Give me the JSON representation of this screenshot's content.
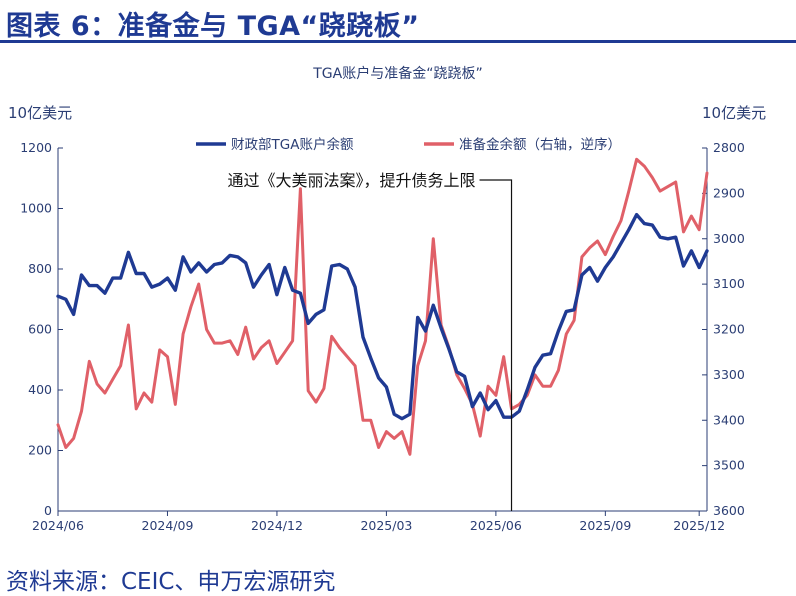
{
  "figure": {
    "title": "图表 6：准备金与 TGA“跷跷板”",
    "source": "资料来源：CEIC、申万宏源研究",
    "title_color": "#1f3a93"
  },
  "chart_data": {
    "type": "line",
    "title": "TGA账户与准备金“跷跷板”",
    "ylabel_left": "10亿美元",
    "ylabel_right": "10亿美元",
    "ylim_left": [
      0,
      1200
    ],
    "ylim_right": [
      2800,
      3600
    ],
    "right_axis_inverted": true,
    "yticks_left": [
      "1200",
      "1000",
      "800",
      "600",
      "400",
      "200",
      "0"
    ],
    "yticks_right": [
      "2800",
      "2900",
      "3000",
      "3100",
      "3200",
      "3300",
      "3400",
      "3500",
      "3600"
    ],
    "xticks": [
      "2024/06",
      "2024/09",
      "2024/12",
      "2025/03",
      "2025/06",
      "2025/09",
      "2025/12"
    ],
    "grid": false,
    "legend_placement": "top",
    "series": [
      {
        "name": "财政部TGA账户余额",
        "axis": "left",
        "color": "#1f3a93",
        "values": [
          {
            "x": 0.0,
            "y": 710
          },
          {
            "x": 1.0,
            "y": 700
          },
          {
            "x": 2.0,
            "y": 650
          },
          {
            "x": 3.0,
            "y": 780
          },
          {
            "x": 4.0,
            "y": 745
          },
          {
            "x": 5.0,
            "y": 745
          },
          {
            "x": 6.0,
            "y": 720
          },
          {
            "x": 7.0,
            "y": 770
          },
          {
            "x": 8.0,
            "y": 770
          },
          {
            "x": 9.0,
            "y": 855
          },
          {
            "x": 10.0,
            "y": 785
          },
          {
            "x": 11.0,
            "y": 785
          },
          {
            "x": 12.0,
            "y": 740
          },
          {
            "x": 13.0,
            "y": 750
          },
          {
            "x": 14.0,
            "y": 770
          },
          {
            "x": 15.0,
            "y": 730
          },
          {
            "x": 16.0,
            "y": 840
          },
          {
            "x": 17.0,
            "y": 790
          },
          {
            "x": 18.0,
            "y": 820
          },
          {
            "x": 19.0,
            "y": 790
          },
          {
            "x": 20.0,
            "y": 815
          },
          {
            "x": 21.0,
            "y": 820
          },
          {
            "x": 22.0,
            "y": 845
          },
          {
            "x": 23.0,
            "y": 840
          },
          {
            "x": 24.0,
            "y": 820
          },
          {
            "x": 25.0,
            "y": 740
          },
          {
            "x": 26.0,
            "y": 780
          },
          {
            "x": 27.0,
            "y": 815
          },
          {
            "x": 28.0,
            "y": 715
          },
          {
            "x": 29.0,
            "y": 805
          },
          {
            "x": 30.0,
            "y": 730
          },
          {
            "x": 31.0,
            "y": 720
          },
          {
            "x": 32.0,
            "y": 620
          },
          {
            "x": 33.0,
            "y": 650
          },
          {
            "x": 34.0,
            "y": 665
          },
          {
            "x": 35.0,
            "y": 810
          },
          {
            "x": 36.0,
            "y": 815
          },
          {
            "x": 37.0,
            "y": 800
          },
          {
            "x": 38.0,
            "y": 740
          },
          {
            "x": 39.0,
            "y": 575
          },
          {
            "x": 40.0,
            "y": 505
          },
          {
            "x": 41.0,
            "y": 440
          },
          {
            "x": 42.0,
            "y": 410
          },
          {
            "x": 43.0,
            "y": 320
          },
          {
            "x": 44.0,
            "y": 305
          },
          {
            "x": 45.0,
            "y": 320
          },
          {
            "x": 46.0,
            "y": 640
          },
          {
            "x": 47.0,
            "y": 595
          },
          {
            "x": 48.0,
            "y": 680
          },
          {
            "x": 49.0,
            "y": 605
          },
          {
            "x": 50.0,
            "y": 535
          },
          {
            "x": 51.0,
            "y": 460
          },
          {
            "x": 52.0,
            "y": 445
          },
          {
            "x": 53.0,
            "y": 345
          },
          {
            "x": 54.0,
            "y": 390
          },
          {
            "x": 55.0,
            "y": 335
          },
          {
            "x": 56.0,
            "y": 365
          },
          {
            "x": 57.0,
            "y": 310
          },
          {
            "x": 58.0,
            "y": 310
          },
          {
            "x": 59.0,
            "y": 330
          },
          {
            "x": 60.0,
            "y": 400
          },
          {
            "x": 61.0,
            "y": 475
          },
          {
            "x": 62.0,
            "y": 515
          },
          {
            "x": 63.0,
            "y": 520
          },
          {
            "x": 64.0,
            "y": 595
          },
          {
            "x": 65.0,
            "y": 660
          },
          {
            "x": 66.0,
            "y": 665
          },
          {
            "x": 67.0,
            "y": 780
          },
          {
            "x": 68.0,
            "y": 805
          },
          {
            "x": 69.0,
            "y": 760
          },
          {
            "x": 70.0,
            "y": 805
          },
          {
            "x": 71.0,
            "y": 840
          },
          {
            "x": 72.0,
            "y": 885
          },
          {
            "x": 73.0,
            "y": 930
          },
          {
            "x": 74.0,
            "y": 980
          },
          {
            "x": 75.0,
            "y": 950
          },
          {
            "x": 76.0,
            "y": 945
          },
          {
            "x": 77.0,
            "y": 905
          },
          {
            "x": 78.0,
            "y": 900
          },
          {
            "x": 79.0,
            "y": 905
          },
          {
            "x": 80.0,
            "y": 810
          },
          {
            "x": 81.0,
            "y": 860
          },
          {
            "x": 82.0,
            "y": 805
          },
          {
            "x": 83.0,
            "y": 860
          }
        ]
      },
      {
        "name": "准备金余额（右轴，逆序）",
        "axis": "right",
        "color": "#e06068",
        "values": [
          {
            "x": 0.0,
            "y": 3410
          },
          {
            "x": 1.0,
            "y": 3460
          },
          {
            "x": 2.0,
            "y": 3440
          },
          {
            "x": 3.0,
            "y": 3380
          },
          {
            "x": 4.0,
            "y": 3270
          },
          {
            "x": 5.0,
            "y": 3320
          },
          {
            "x": 6.0,
            "y": 3340
          },
          {
            "x": 7.0,
            "y": 3310
          },
          {
            "x": 8.0,
            "y": 3280
          },
          {
            "x": 9.0,
            "y": 3190
          },
          {
            "x": 10.0,
            "y": 3375
          },
          {
            "x": 11.0,
            "y": 3340
          },
          {
            "x": 12.0,
            "y": 3360
          },
          {
            "x": 13.0,
            "y": 3245
          },
          {
            "x": 14.0,
            "y": 3260
          },
          {
            "x": 15.0,
            "y": 3365
          },
          {
            "x": 16.0,
            "y": 3210
          },
          {
            "x": 17.0,
            "y": 3150
          },
          {
            "x": 18.0,
            "y": 3100
          },
          {
            "x": 19.0,
            "y": 3200
          },
          {
            "x": 20.0,
            "y": 3230
          },
          {
            "x": 21.0,
            "y": 3230
          },
          {
            "x": 22.0,
            "y": 3225
          },
          {
            "x": 23.0,
            "y": 3255
          },
          {
            "x": 24.0,
            "y": 3195
          },
          {
            "x": 25.0,
            "y": 3265
          },
          {
            "x": 26.0,
            "y": 3240
          },
          {
            "x": 27.0,
            "y": 3225
          },
          {
            "x": 28.0,
            "y": 3275
          },
          {
            "x": 29.0,
            "y": 3250
          },
          {
            "x": 30.0,
            "y": 3225
          },
          {
            "x": 31.0,
            "y": 2890
          },
          {
            "x": 32.0,
            "y": 3335
          },
          {
            "x": 33.0,
            "y": 3360
          },
          {
            "x": 34.0,
            "y": 3330
          },
          {
            "x": 35.0,
            "y": 3215
          },
          {
            "x": 36.0,
            "y": 3240
          },
          {
            "x": 37.0,
            "y": 3260
          },
          {
            "x": 38.0,
            "y": 3280
          },
          {
            "x": 39.0,
            "y": 3400
          },
          {
            "x": 40.0,
            "y": 3400
          },
          {
            "x": 41.0,
            "y": 3460
          },
          {
            "x": 42.0,
            "y": 3425
          },
          {
            "x": 43.0,
            "y": 3440
          },
          {
            "x": 44.0,
            "y": 3425
          },
          {
            "x": 45.0,
            "y": 3475
          },
          {
            "x": 46.0,
            "y": 3280
          },
          {
            "x": 47.0,
            "y": 3225
          },
          {
            "x": 48.0,
            "y": 3000
          },
          {
            "x": 49.0,
            "y": 3190
          },
          {
            "x": 50.0,
            "y": 3240
          },
          {
            "x": 51.0,
            "y": 3300
          },
          {
            "x": 52.0,
            "y": 3330
          },
          {
            "x": 53.0,
            "y": 3365
          },
          {
            "x": 54.0,
            "y": 3435
          },
          {
            "x": 55.0,
            "y": 3325
          },
          {
            "x": 56.0,
            "y": 3345
          },
          {
            "x": 57.0,
            "y": 3260
          },
          {
            "x": 58.0,
            "y": 3375
          },
          {
            "x": 59.0,
            "y": 3365
          },
          {
            "x": 60.0,
            "y": 3345
          },
          {
            "x": 61.0,
            "y": 3300
          },
          {
            "x": 62.0,
            "y": 3325
          },
          {
            "x": 63.0,
            "y": 3325
          },
          {
            "x": 64.0,
            "y": 3290
          },
          {
            "x": 65.0,
            "y": 3210
          },
          {
            "x": 66.0,
            "y": 3180
          },
          {
            "x": 67.0,
            "y": 3040
          },
          {
            "x": 68.0,
            "y": 3020
          },
          {
            "x": 69.0,
            "y": 3005
          },
          {
            "x": 70.0,
            "y": 3035
          },
          {
            "x": 71.0,
            "y": 2995
          },
          {
            "x": 72.0,
            "y": 2960
          },
          {
            "x": 73.0,
            "y": 2895
          },
          {
            "x": 74.0,
            "y": 2825
          },
          {
            "x": 75.0,
            "y": 2840
          },
          {
            "x": 76.0,
            "y": 2865
          },
          {
            "x": 77.0,
            "y": 2895
          },
          {
            "x": 78.0,
            "y": 2885
          },
          {
            "x": 79.0,
            "y": 2875
          },
          {
            "x": 80.0,
            "y": 2985
          },
          {
            "x": 81.0,
            "y": 2950
          },
          {
            "x": 82.0,
            "y": 2980
          },
          {
            "x": 83.0,
            "y": 2855
          }
        ]
      }
    ],
    "x_domain": [
      0,
      83
    ],
    "xtick_positions": [
      0,
      14,
      28,
      42,
      56,
      70,
      82
    ],
    "annotation": {
      "text": "通过《大美丽法案》，提升债务上限",
      "x": 58
    }
  }
}
